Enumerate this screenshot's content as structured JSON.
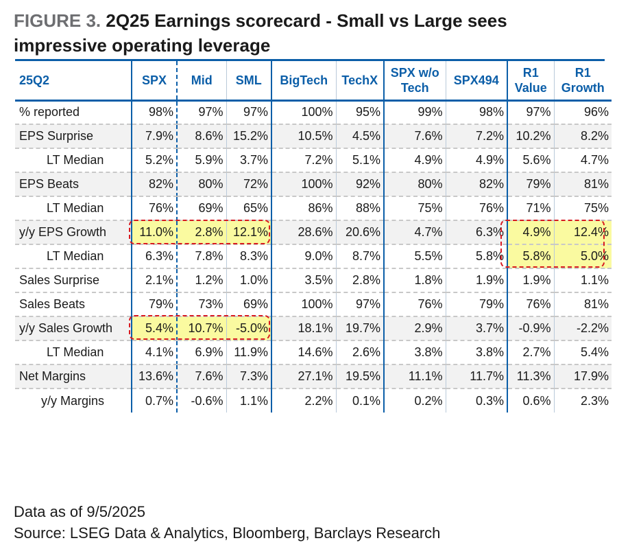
{
  "title": {
    "label": "FIGURE 3.",
    "text": "2Q25 Earnings scorecard - Small vs Large sees impressive operating leverage"
  },
  "table": {
    "corner": "25Q2",
    "columns": [
      "SPX",
      "Mid",
      "SML",
      "BigTech",
      "TechX",
      "SPX w/o Tech",
      "SPX494",
      "R1 Value",
      "R1 Growth"
    ],
    "rows": [
      {
        "label": "% reported",
        "values": [
          "98%",
          "97%",
          "97%",
          "100%",
          "95%",
          "99%",
          "98%",
          "97%",
          "96%"
        ]
      },
      {
        "label": "EPS Surprise",
        "values": [
          "7.9%",
          "8.6%",
          "15.2%",
          "10.5%",
          "4.5%",
          "7.6%",
          "7.2%",
          "10.2%",
          "8.2%"
        ]
      },
      {
        "label": "LT Median",
        "values": [
          "5.2%",
          "5.9%",
          "3.7%",
          "7.2%",
          "5.1%",
          "4.9%",
          "4.9%",
          "5.6%",
          "4.7%"
        ]
      },
      {
        "label": "EPS Beats",
        "values": [
          "82%",
          "80%",
          "72%",
          "100%",
          "92%",
          "80%",
          "82%",
          "79%",
          "81%"
        ]
      },
      {
        "label": "LT Median",
        "values": [
          "76%",
          "69%",
          "65%",
          "86%",
          "88%",
          "75%",
          "76%",
          "71%",
          "75%"
        ]
      },
      {
        "label": "y/y EPS Growth",
        "values": [
          "11.0%",
          "2.8%",
          "12.1%",
          "28.6%",
          "20.6%",
          "4.7%",
          "6.3%",
          "4.9%",
          "12.4%"
        ]
      },
      {
        "label": "LT Median",
        "values": [
          "6.3%",
          "7.8%",
          "8.3%",
          "9.0%",
          "8.7%",
          "5.5%",
          "5.8%",
          "5.8%",
          "5.0%"
        ]
      },
      {
        "label": "Sales Surprise",
        "values": [
          "2.1%",
          "1.2%",
          "1.0%",
          "3.5%",
          "2.8%",
          "1.8%",
          "1.9%",
          "1.9%",
          "1.1%"
        ]
      },
      {
        "label": "Sales Beats",
        "values": [
          "79%",
          "73%",
          "69%",
          "100%",
          "97%",
          "76%",
          "79%",
          "76%",
          "81%"
        ]
      },
      {
        "label": "y/y Sales Growth",
        "values": [
          "5.4%",
          "10.7%",
          "-5.0%",
          "18.1%",
          "19.7%",
          "2.9%",
          "3.7%",
          "-0.9%",
          "-2.2%"
        ]
      },
      {
        "label": "LT Median",
        "values": [
          "4.1%",
          "6.9%",
          "11.9%",
          "14.6%",
          "2.6%",
          "3.8%",
          "3.8%",
          "2.7%",
          "5.4%"
        ]
      },
      {
        "label": "Net Margins",
        "values": [
          "13.6%",
          "7.6%",
          "7.3%",
          "27.1%",
          "19.5%",
          "11.1%",
          "11.7%",
          "11.3%",
          "17.9%"
        ]
      },
      {
        "label": "y/y Margins",
        "values": [
          "0.7%",
          "-0.6%",
          "1.1%",
          "2.2%",
          "0.1%",
          "0.2%",
          "0.3%",
          "0.6%",
          "2.3%"
        ]
      }
    ]
  },
  "colors": {
    "header_blue": "#0b5ea8",
    "highlight_yellow": "#fafaa0",
    "callout_red": "#d71920"
  },
  "footer": {
    "date_note": "Data as of 9/5/2025",
    "source": "Source: LSEG Data & Analytics, Bloomberg, Barclays Research"
  }
}
